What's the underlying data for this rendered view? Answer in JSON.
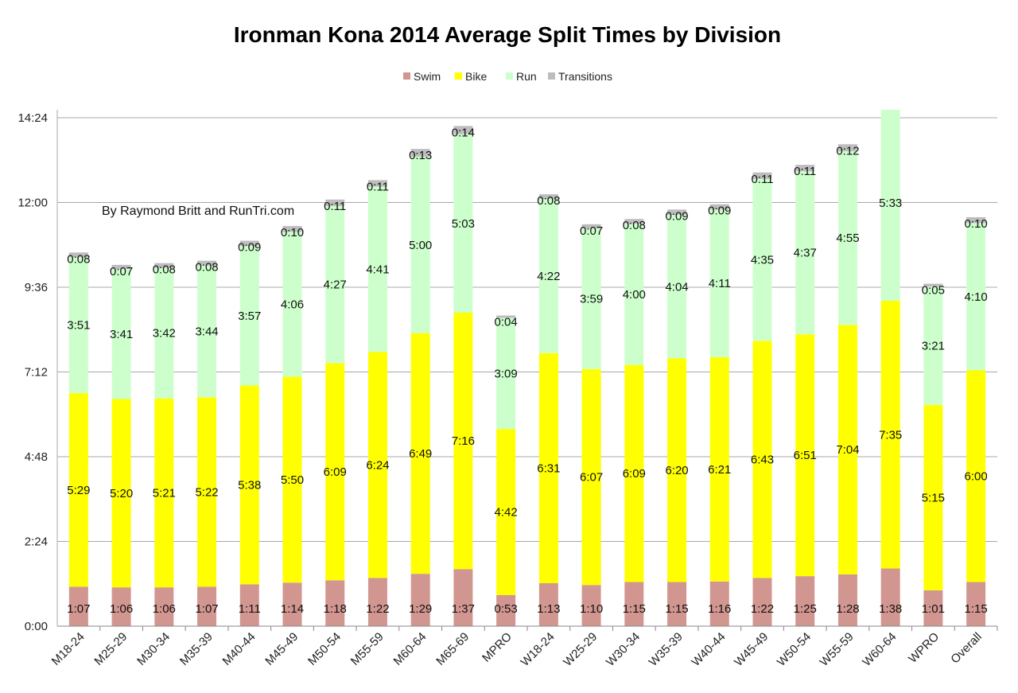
{
  "chart_data": {
    "type": "bar",
    "stacked": true,
    "title": "Ironman Kona 2014 Average Split Times by Division",
    "annotation": "By Raymond Britt and RunTri.com",
    "xlabel": "",
    "ylabel": "",
    "ylim_minutes": [
      0,
      864
    ],
    "ytick_labels": [
      "0:00",
      "2:24",
      "4:48",
      "7:12",
      "9:36",
      "12:00",
      "14:24"
    ],
    "grid": true,
    "legend_position": "top",
    "categories": [
      "M18-24",
      "M25-29",
      "M30-34",
      "M35-39",
      "M40-44",
      "M45-49",
      "M50-54",
      "M55-59",
      "M60-64",
      "M65-69",
      "MPRO",
      "W18-24",
      "W25-29",
      "W30-34",
      "W35-39",
      "W40-44",
      "W45-49",
      "W50-54",
      "W55-59",
      "W60-64",
      "WPRO",
      "Overall"
    ],
    "series": [
      {
        "name": "Swim",
        "color": "#d29691",
        "values": [
          "1:07",
          "1:06",
          "1:06",
          "1:07",
          "1:11",
          "1:14",
          "1:18",
          "1:22",
          "1:29",
          "1:37",
          "0:53",
          "1:13",
          "1:10",
          "1:15",
          "1:15",
          "1:16",
          "1:22",
          "1:25",
          "1:28",
          "1:38",
          "1:01",
          "1:15"
        ]
      },
      {
        "name": "Bike",
        "color": "#ffff00",
        "values": [
          "5:29",
          "5:20",
          "5:21",
          "5:22",
          "5:38",
          "5:50",
          "6:09",
          "6:24",
          "6:49",
          "7:16",
          "4:42",
          "6:31",
          "6:07",
          "6:09",
          "6:20",
          "6:21",
          "6:43",
          "6:51",
          "7:04",
          "7:35",
          "5:15",
          "6:00"
        ]
      },
      {
        "name": "Run",
        "color": "#ccffcc",
        "values": [
          "3:51",
          "3:41",
          "3:42",
          "3:44",
          "3:57",
          "4:06",
          "4:27",
          "4:41",
          "5:00",
          "5:03",
          "3:09",
          "4:22",
          "3:59",
          "4:00",
          "4:04",
          "4:11",
          "4:35",
          "4:37",
          "4:55",
          "5:33",
          "3:21",
          "4:10"
        ]
      },
      {
        "name": "Transitions",
        "color": "#bdbdbd",
        "values": [
          "0:08",
          "0:07",
          "0:08",
          "0:08",
          "0:09",
          "0:10",
          "0:11",
          "0:11",
          "0:13",
          "0:14",
          "0:04",
          "0:08",
          "0:07",
          "0:08",
          "0:09",
          "0:09",
          "0:11",
          "0:11",
          "0:12",
          "",
          "0:05",
          "0:10"
        ]
      }
    ]
  }
}
